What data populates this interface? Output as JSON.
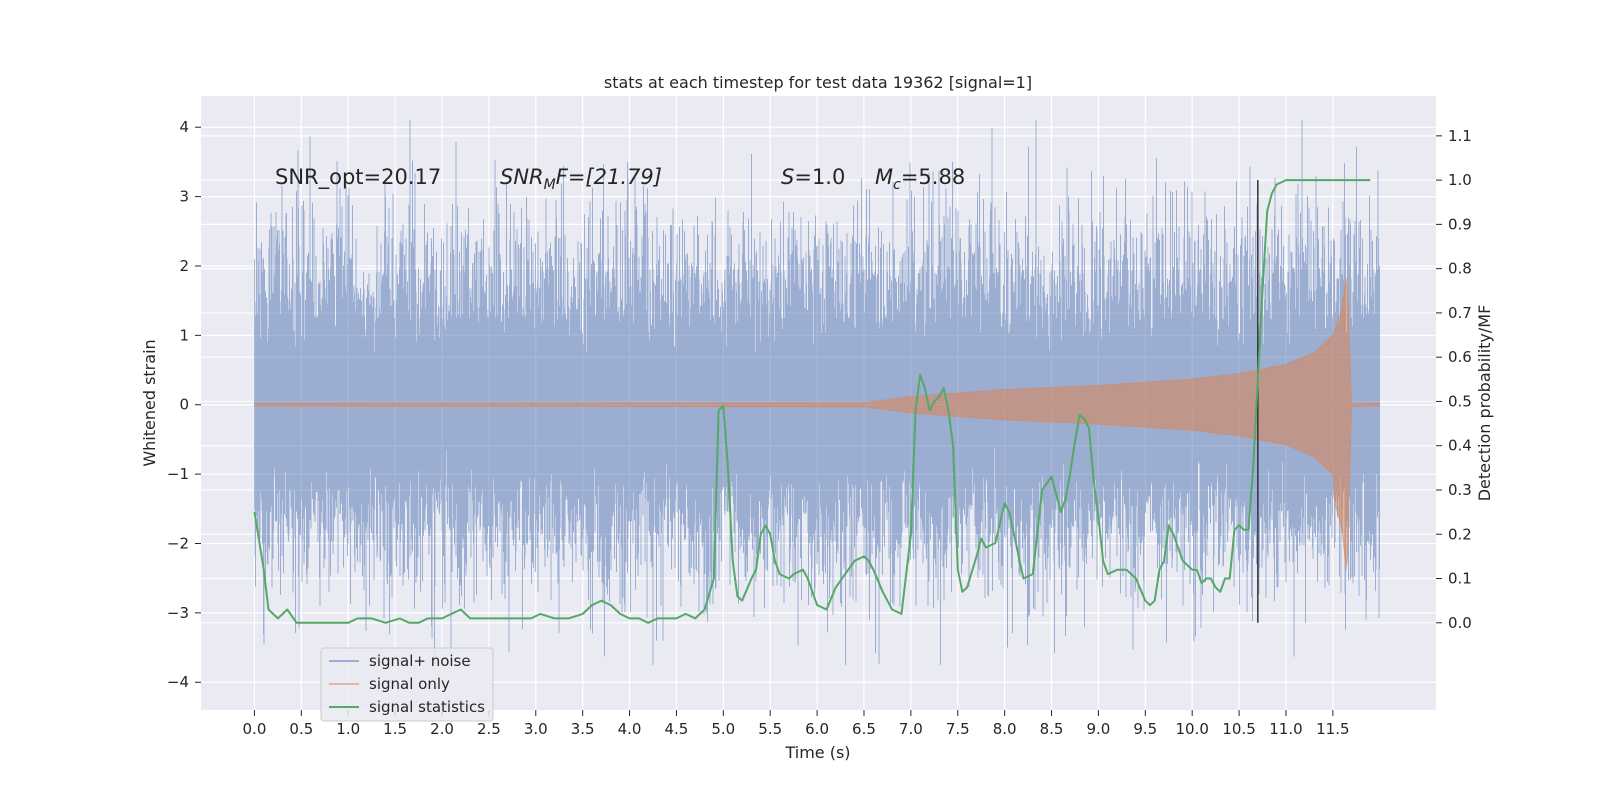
{
  "chart_data": {
    "type": "line",
    "title": "stats at each timestep for test data 19362 [signal=1]",
    "xlabel": "Time (s)",
    "ylabel": "Whitened strain",
    "y2label": "Detection probability/MF",
    "xlim": [
      -0.57,
      12.6
    ],
    "ylim": [
      -4.4,
      4.45
    ],
    "y2lim": [
      -0.197,
      1.19
    ],
    "xticks": [
      0,
      0.5,
      1,
      1.5,
      2,
      2.5,
      3,
      3.5,
      4,
      4.5,
      5,
      5.5,
      6,
      6.5,
      7,
      7.5,
      8,
      8.5,
      9,
      9.5,
      10,
      10.5,
      11,
      11.5
    ],
    "xtick_labels": [
      "0.0",
      "0.5",
      "1.0",
      "1.5",
      "2.0",
      "2.5",
      "3.0",
      "3.5",
      "4.0",
      "4.5",
      "5.0",
      "5.5",
      "6.0",
      "6.5",
      "7.0",
      "7.5",
      "8.0",
      "8.5",
      "9.0",
      "9.5",
      "10.0",
      "10.5",
      "11.0",
      "11.5"
    ],
    "yticks": [
      -4,
      -3,
      -2,
      -1,
      0,
      1,
      2,
      3,
      4
    ],
    "ytick_labels": [
      "−4",
      "−3",
      "−2",
      "−1",
      "0",
      "1",
      "2",
      "3",
      "4"
    ],
    "y2ticks": [
      0,
      0.1,
      0.2,
      0.3,
      0.4,
      0.5,
      0.6,
      0.7,
      0.8,
      0.9,
      1.0,
      1.1
    ],
    "y2tick_labels": [
      "0.0",
      "0.1",
      "0.2",
      "0.3",
      "0.4",
      "0.5",
      "0.6",
      "0.7",
      "0.8",
      "0.9",
      "1.0",
      "1.1"
    ],
    "grid": true,
    "legend_position": "lower-left",
    "annotations": {
      "snr_opt": "SNR_opt=20.17",
      "snr_mf_base": "SNR",
      "snr_mf_sub": "M",
      "snr_mf_rest": "F=[21.79]",
      "s_symbol": "S",
      "s_rest": "=1.0",
      "mc_symbol": "M",
      "mc_sub": "c",
      "mc_rest": "=5.88"
    },
    "marker_line_x": 10.7,
    "series": [
      {
        "name": "signal+ noise",
        "color": "#4c72b0",
        "opacity": 0.5,
        "x_range": [
          0,
          12.0
        ],
        "envelope_sigma": 1.0,
        "peak_abs_max": 4.1,
        "description_values": "dense whitened noise, roughly between -3.7 and 4.1"
      },
      {
        "name": "signal only",
        "color": "#dd8452",
        "opacity": 0.5,
        "x_range": [
          0,
          12.0
        ],
        "envelope": [
          [
            0,
            0.02
          ],
          [
            6.5,
            0.03
          ],
          [
            7.0,
            0.12
          ],
          [
            8.0,
            0.22
          ],
          [
            9.0,
            0.28
          ],
          [
            10.0,
            0.37
          ],
          [
            10.5,
            0.45
          ],
          [
            11.0,
            0.58
          ],
          [
            11.3,
            0.75
          ],
          [
            11.5,
            1.0
          ],
          [
            11.6,
            1.4
          ],
          [
            11.65,
            1.95
          ],
          [
            11.7,
            0.02
          ]
        ]
      },
      {
        "name": "signal statistics",
        "color": "#55a868",
        "axis": "right",
        "x": [
          0,
          0.1,
          0.15,
          0.25,
          0.35,
          0.45,
          0.55,
          0.6,
          0.75,
          0.85,
          1.0,
          1.1,
          1.25,
          1.4,
          1.55,
          1.65,
          1.75,
          1.85,
          2.0,
          2.1,
          2.2,
          2.3,
          2.4,
          2.5,
          2.65,
          2.8,
          2.95,
          3.05,
          3.2,
          3.35,
          3.5,
          3.6,
          3.7,
          3.8,
          3.9,
          4.0,
          4.1,
          4.2,
          4.3,
          4.4,
          4.5,
          4.6,
          4.7,
          4.75,
          4.8,
          4.9,
          4.95,
          5.0,
          5.05,
          5.1,
          5.15,
          5.2,
          5.3,
          5.35,
          5.4,
          5.45,
          5.5,
          5.55,
          5.6,
          5.7,
          5.75,
          5.85,
          5.9,
          6.0,
          6.1,
          6.2,
          6.3,
          6.4,
          6.5,
          6.55,
          6.6,
          6.7,
          6.8,
          6.9,
          7.0,
          7.05,
          7.1,
          7.15,
          7.2,
          7.25,
          7.3,
          7.35,
          7.4,
          7.45,
          7.5,
          7.55,
          7.6,
          7.7,
          7.75,
          7.8,
          7.9,
          8.0,
          8.05,
          8.1,
          8.2,
          8.3,
          8.4,
          8.5,
          8.6,
          8.65,
          8.7,
          8.75,
          8.8,
          8.85,
          8.9,
          8.95,
          9.0,
          9.05,
          9.1,
          9.2,
          9.3,
          9.4,
          9.5,
          9.55,
          9.6,
          9.65,
          9.7,
          9.75,
          9.8,
          9.9,
          10.0,
          10.05,
          10.1,
          10.15,
          10.2,
          10.25,
          10.3,
          10.35,
          10.4,
          10.45,
          10.5,
          10.55,
          10.6,
          10.65,
          10.7,
          10.75,
          10.8,
          10.85,
          10.9,
          11.0,
          11.1,
          11.5,
          11.9
        ],
        "y": [
          0.25,
          0.12,
          0.03,
          0.01,
          0.03,
          0.0,
          0.0,
          0.0,
          0.0,
          0.0,
          0.0,
          0.01,
          0.01,
          0.0,
          0.01,
          0.0,
          0.0,
          0.01,
          0.01,
          0.02,
          0.03,
          0.01,
          0.01,
          0.01,
          0.01,
          0.01,
          0.01,
          0.02,
          0.01,
          0.01,
          0.02,
          0.04,
          0.05,
          0.04,
          0.02,
          0.01,
          0.01,
          0.0,
          0.01,
          0.01,
          0.01,
          0.02,
          0.01,
          0.02,
          0.03,
          0.1,
          0.48,
          0.49,
          0.35,
          0.14,
          0.06,
          0.05,
          0.1,
          0.12,
          0.2,
          0.22,
          0.2,
          0.14,
          0.11,
          0.1,
          0.11,
          0.12,
          0.1,
          0.04,
          0.03,
          0.08,
          0.11,
          0.14,
          0.15,
          0.14,
          0.12,
          0.07,
          0.03,
          0.02,
          0.2,
          0.48,
          0.56,
          0.53,
          0.48,
          0.5,
          0.51,
          0.53,
          0.48,
          0.4,
          0.12,
          0.07,
          0.08,
          0.15,
          0.19,
          0.17,
          0.18,
          0.27,
          0.25,
          0.2,
          0.1,
          0.11,
          0.3,
          0.33,
          0.25,
          0.28,
          0.34,
          0.41,
          0.47,
          0.46,
          0.44,
          0.32,
          0.24,
          0.14,
          0.11,
          0.12,
          0.12,
          0.1,
          0.05,
          0.04,
          0.05,
          0.12,
          0.14,
          0.22,
          0.2,
          0.14,
          0.12,
          0.12,
          0.09,
          0.1,
          0.1,
          0.08,
          0.07,
          0.1,
          0.1,
          0.21,
          0.22,
          0.21,
          0.21,
          0.35,
          0.55,
          0.75,
          0.93,
          0.97,
          0.99,
          1.0,
          1.0,
          1.0,
          1.0
        ]
      }
    ]
  }
}
